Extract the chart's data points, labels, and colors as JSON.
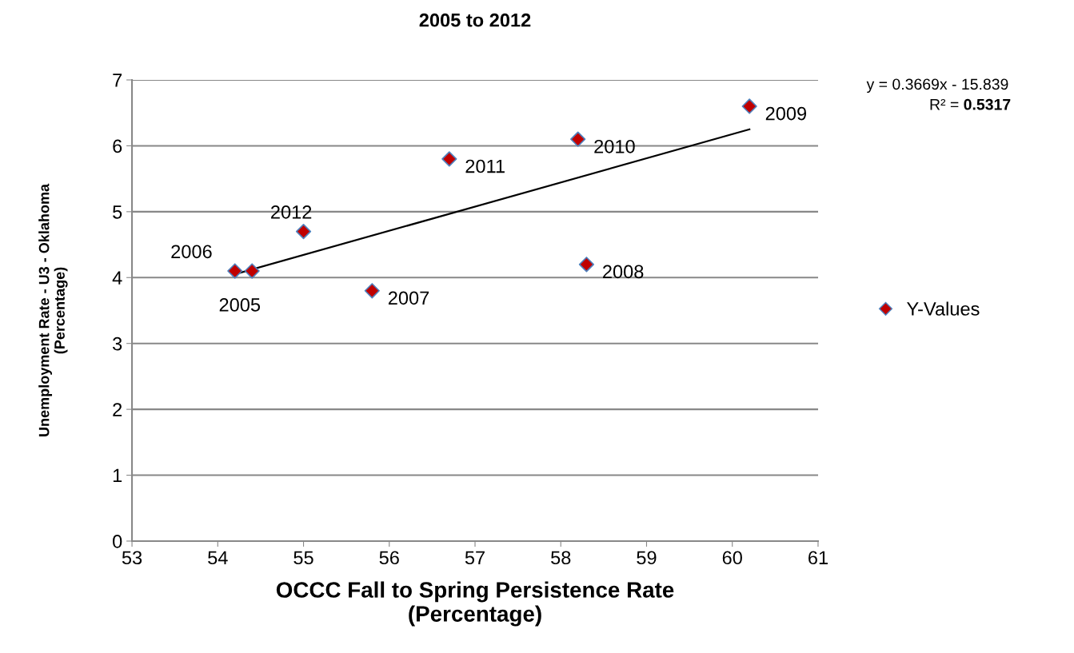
{
  "chart_data": {
    "type": "scatter",
    "title": "2005 to 2012",
    "xlabel": "OCCC Fall to Spring Persistence Rate\n(Percentage)",
    "ylabel": "Unemployment Rate - U3 - Oklahoma\n(Percentage)",
    "series": [
      {
        "name": "Y-Values",
        "color": "#c00000",
        "marker": "diamond",
        "x": [
          54.4,
          54.2,
          55.8,
          58.3,
          60.2,
          58.2,
          56.7,
          55.0
        ],
        "values": [
          4.1,
          4.1,
          3.8,
          4.2,
          6.6,
          6.1,
          5.8,
          4.7
        ]
      },
      {
        "type": "line",
        "color": "#000000",
        "marker": "none",
        "line_style": "solid",
        "x": [
          54.2,
          60.2
        ],
        "values": [
          4.05,
          6.25
        ]
      }
    ],
    "annotations": [
      "y = 0.3669x - 15.839",
      "R² = 0.5317",
      {
        "text": "2005",
        "x": 54.4,
        "y": 4.1
      },
      {
        "text": "2006",
        "x": 54.2,
        "y": 4.1
      },
      {
        "text": "2007",
        "x": 55.8,
        "y": 3.8
      },
      {
        "text": "2008",
        "x": 58.3,
        "y": 4.2
      },
      {
        "text": "2009",
        "x": 60.2,
        "y": 6.6
      },
      {
        "text": "2010",
        "x": 58.2,
        "y": 6.1
      },
      {
        "text": "2011",
        "x": 56.7,
        "y": 5.8
      },
      {
        "text": "2012",
        "x": 55.0,
        "y": 4.7
      }
    ],
    "xlim": [
      53,
      61
    ],
    "xticks": [
      53,
      54,
      55,
      56,
      57,
      58,
      59,
      60,
      61
    ],
    "ylim": [
      0,
      7
    ],
    "yticks": [
      0,
      1,
      2,
      3,
      4,
      5,
      6,
      7
    ],
    "grid": "y",
    "legend": "right"
  }
}
